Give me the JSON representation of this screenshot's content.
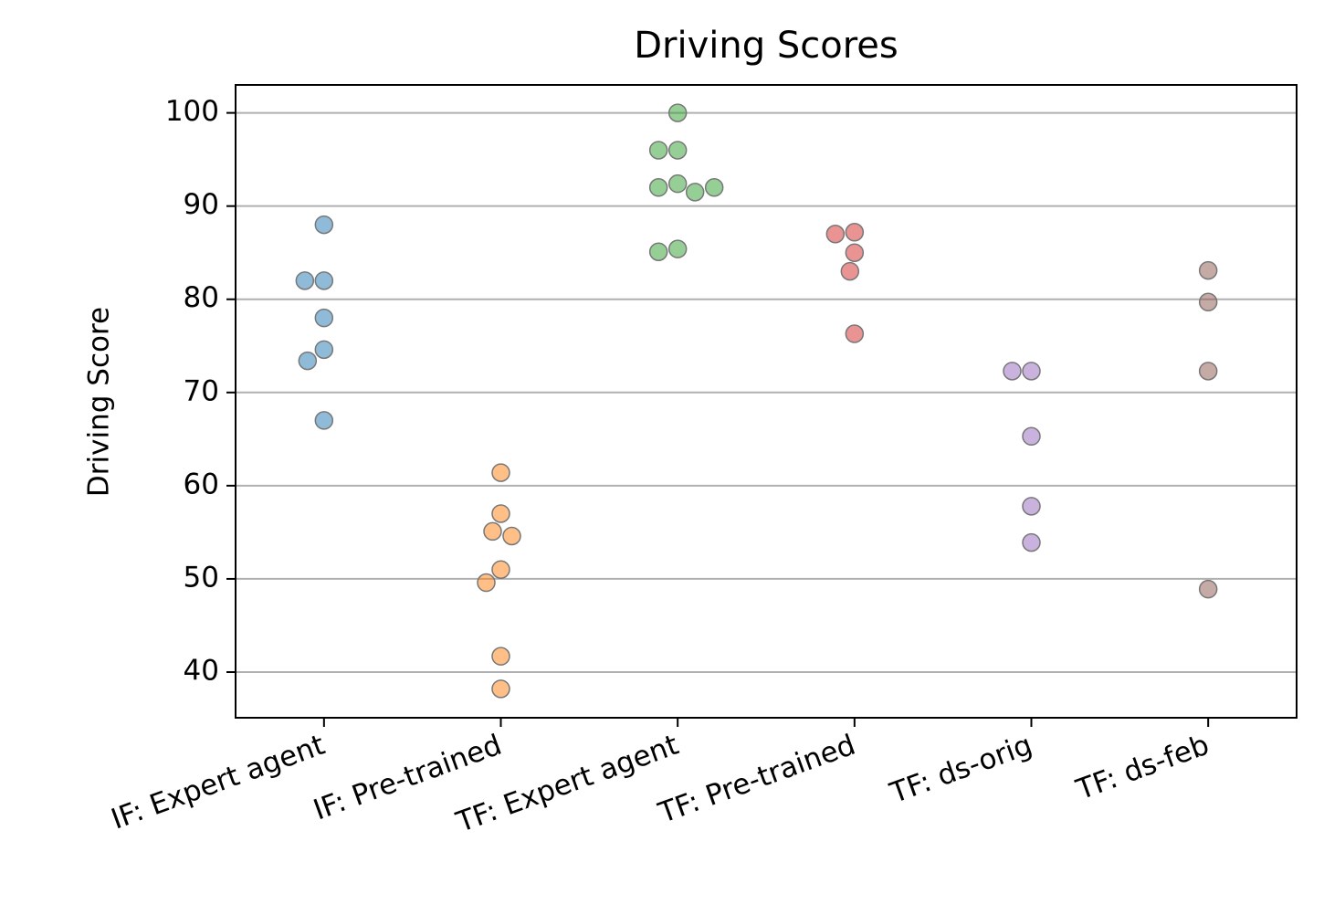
{
  "chart_data": {
    "type": "swarm",
    "title": "Driving Scores",
    "ylabel": "Driving Score",
    "categories": [
      "IF: Expert agent",
      "IF: Pre-trained",
      "TF: Expert agent",
      "TF: Pre-trained",
      "TF: ds-orig",
      "TF: ds-feb"
    ],
    "values": [
      [
        88,
        82,
        82,
        78,
        74.6,
        73.4,
        67
      ],
      [
        61.4,
        57,
        55.1,
        54.6,
        51,
        49.6,
        41.7,
        38.2
      ],
      [
        100,
        96,
        96,
        92.4,
        92,
        91.5,
        92,
        85.4,
        85.1
      ],
      [
        87.2,
        87,
        85,
        83,
        76.3
      ],
      [
        72.3,
        72.3,
        65.3,
        57.8,
        53.9
      ],
      [
        83.1,
        79.7,
        72.3,
        48.9
      ]
    ],
    "colors": [
      "#1f77b4",
      "#ff7f0e",
      "#2ca02c",
      "#d62728",
      "#9467bd",
      "#8c564b"
    ],
    "alpha": 0.5,
    "ylim": [
      35.1,
      103.0
    ],
    "yticks": [
      40,
      50,
      60,
      70,
      80,
      90,
      100
    ],
    "grid": true
  }
}
